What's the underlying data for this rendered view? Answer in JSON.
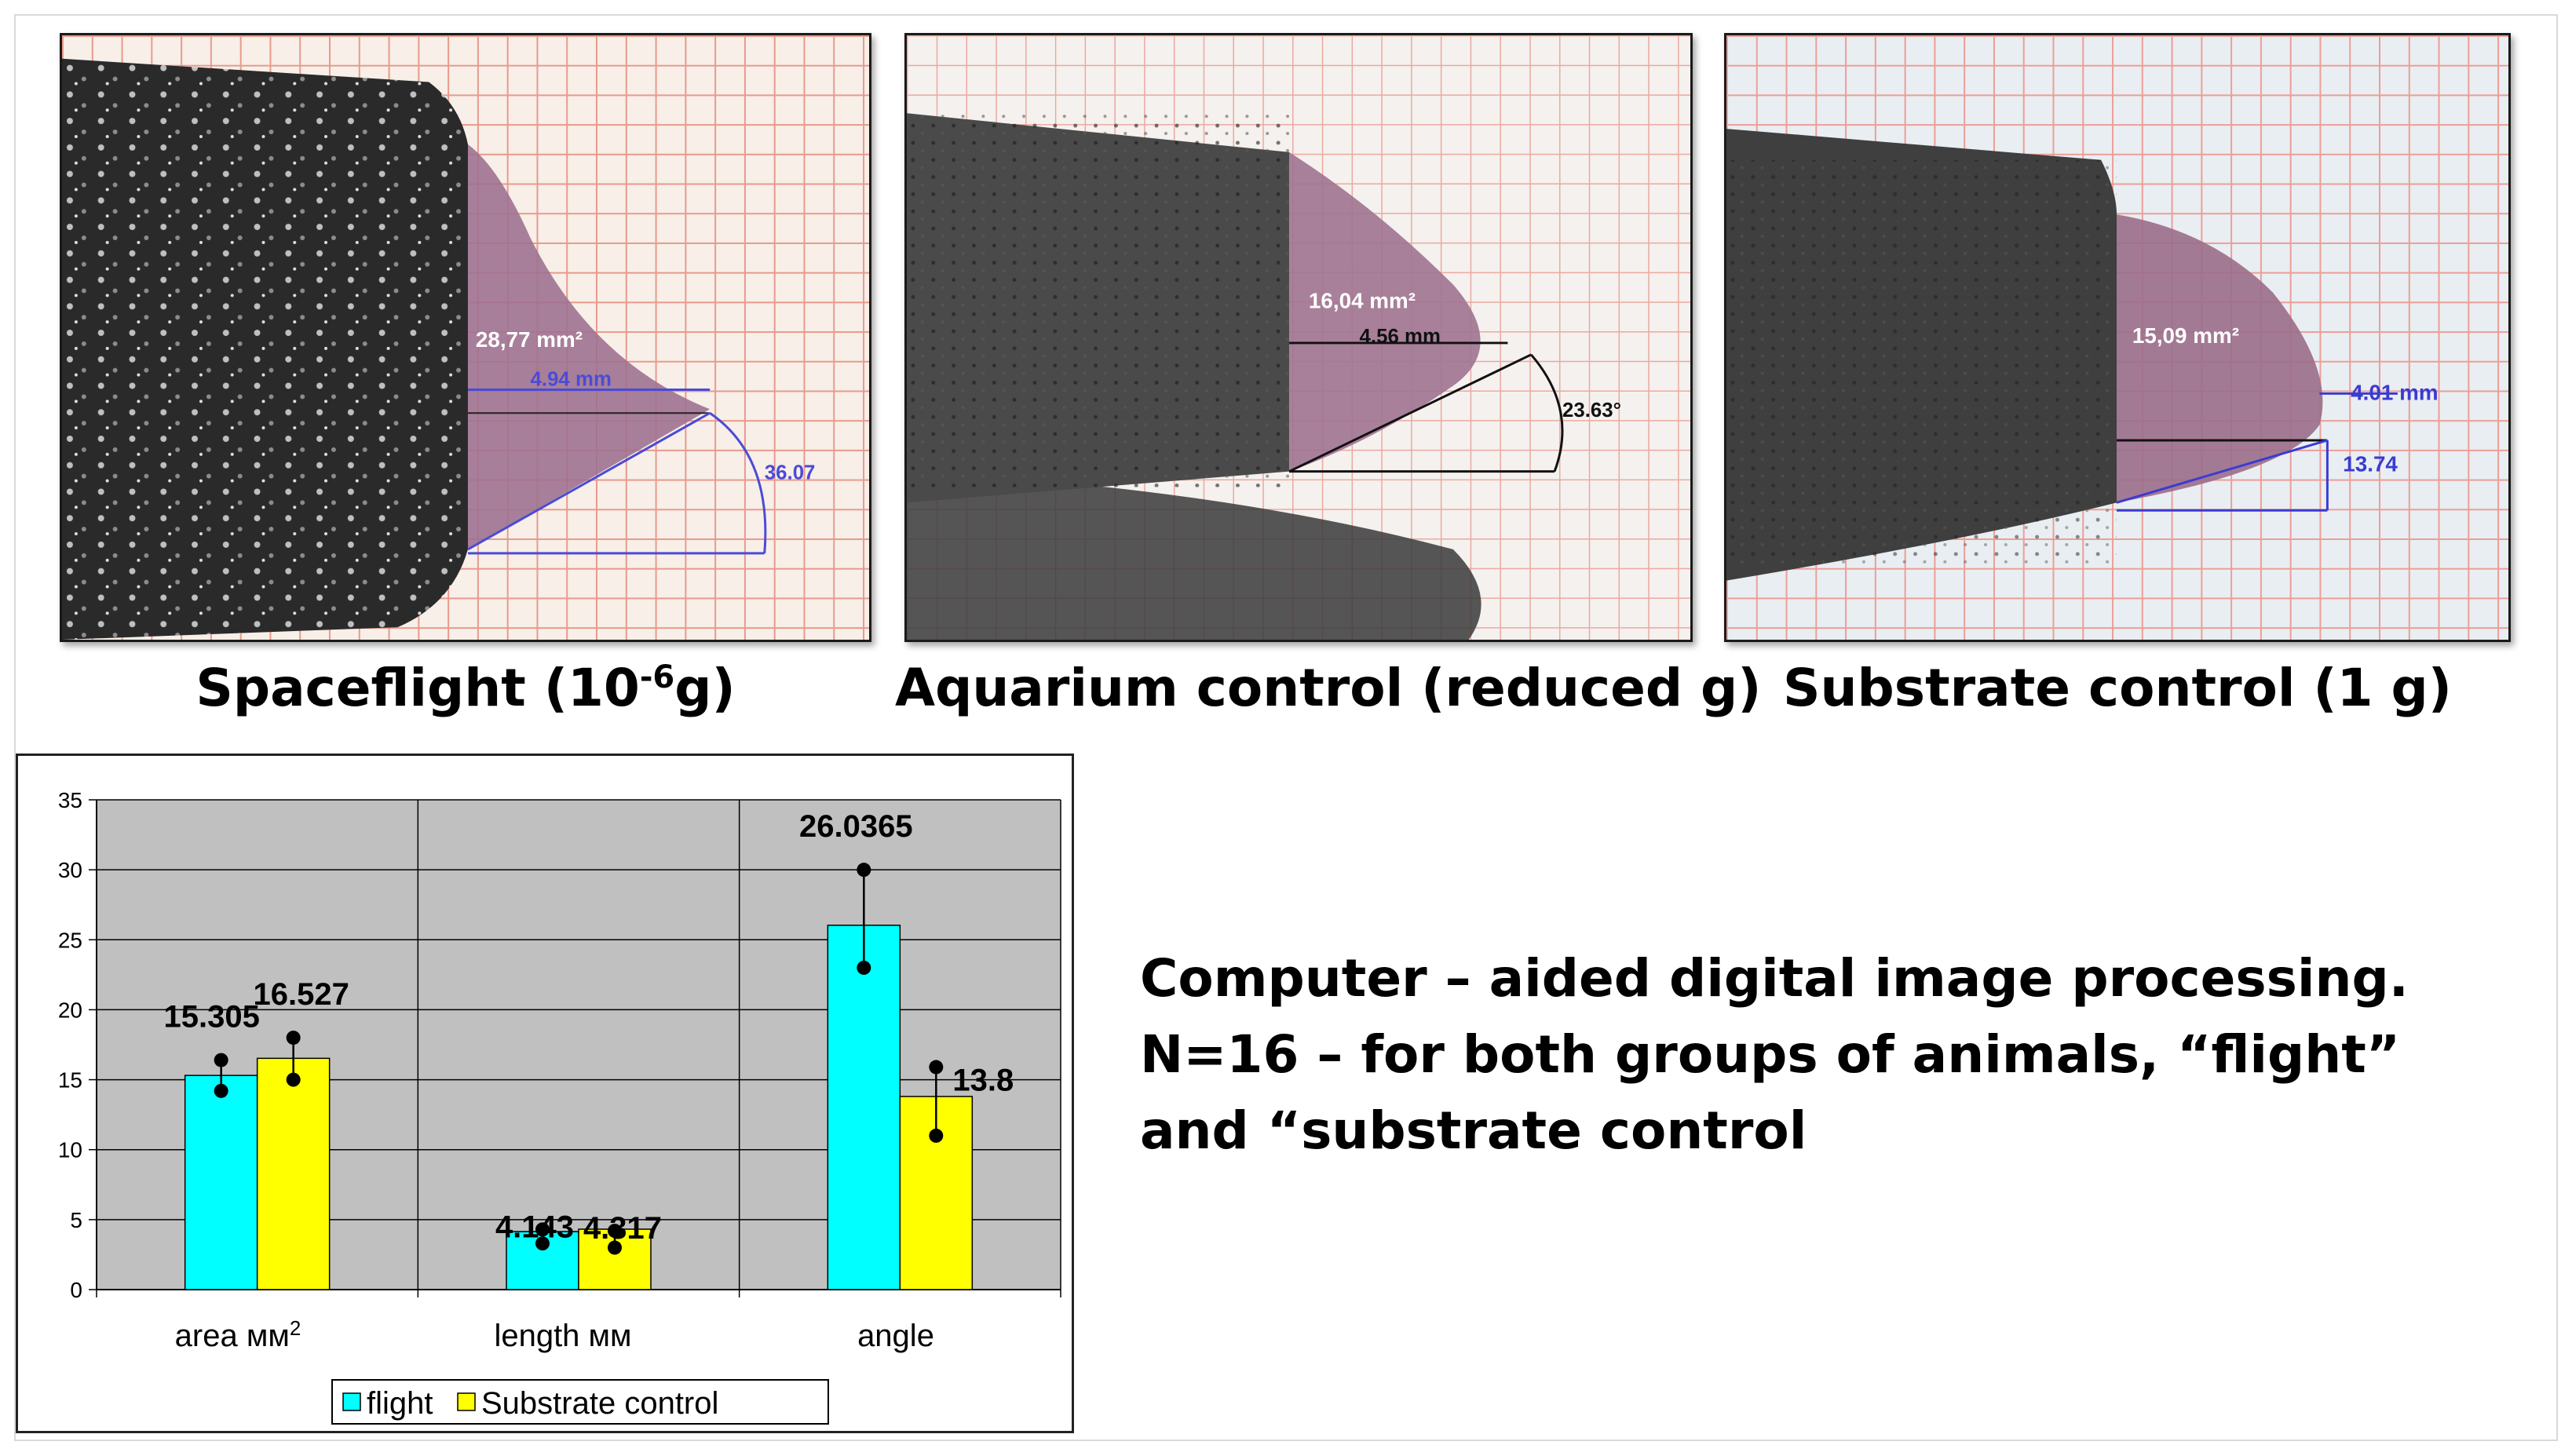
{
  "photos": [
    {
      "caption_main": "Spaceflight (10",
      "caption_sup": "-6",
      "caption_end": "g)",
      "area": "28,77 mm²",
      "length": "4.94 mm",
      "angle": "36.07"
    },
    {
      "caption": "Aquarium control (reduced g)",
      "area": "16,04 mm²",
      "length": "4.56 mm",
      "angle": "23.63°"
    },
    {
      "caption": "Substrate control (1 g)",
      "area": "15,09 mm²",
      "length": "4.01 mm",
      "angle": "13.74"
    }
  ],
  "description": [
    "Computer – aided digital image processing.",
    "N=16 – for both groups of animals, “flight”",
    "and “substrate control"
  ],
  "chart_data": {
    "type": "bar",
    "categories": [
      "area мм²",
      "length мм",
      "angle"
    ],
    "category_labels": {
      "area_main": "area мм",
      "area_sup": "2",
      "length": "length мм",
      "angle": "angle"
    },
    "series": [
      {
        "name": "flight",
        "color": "#00ffff",
        "values": [
          15.305,
          4.143,
          26.0365
        ],
        "labels": [
          "15.305",
          "4.143",
          "26.0365"
        ],
        "err_low": [
          14.2,
          3.3,
          23.0
        ],
        "err_high": [
          16.4,
          4.3,
          30.0
        ]
      },
      {
        "name": "Substrate control",
        "color": "#ffff00",
        "values": [
          16.527,
          4.317,
          13.8
        ],
        "labels": [
          "16.527",
          "4.317",
          "13.8"
        ],
        "err_low": [
          15.0,
          3.0,
          11.0
        ],
        "err_high": [
          18.0,
          4.2,
          15.9
        ]
      }
    ],
    "ylim": [
      0,
      35
    ],
    "yticks": [
      "0",
      "5",
      "10",
      "15",
      "20",
      "25",
      "30",
      "35"
    ],
    "plot_background": "#c0c0c0",
    "grid": true,
    "legend_position": "bottom"
  }
}
